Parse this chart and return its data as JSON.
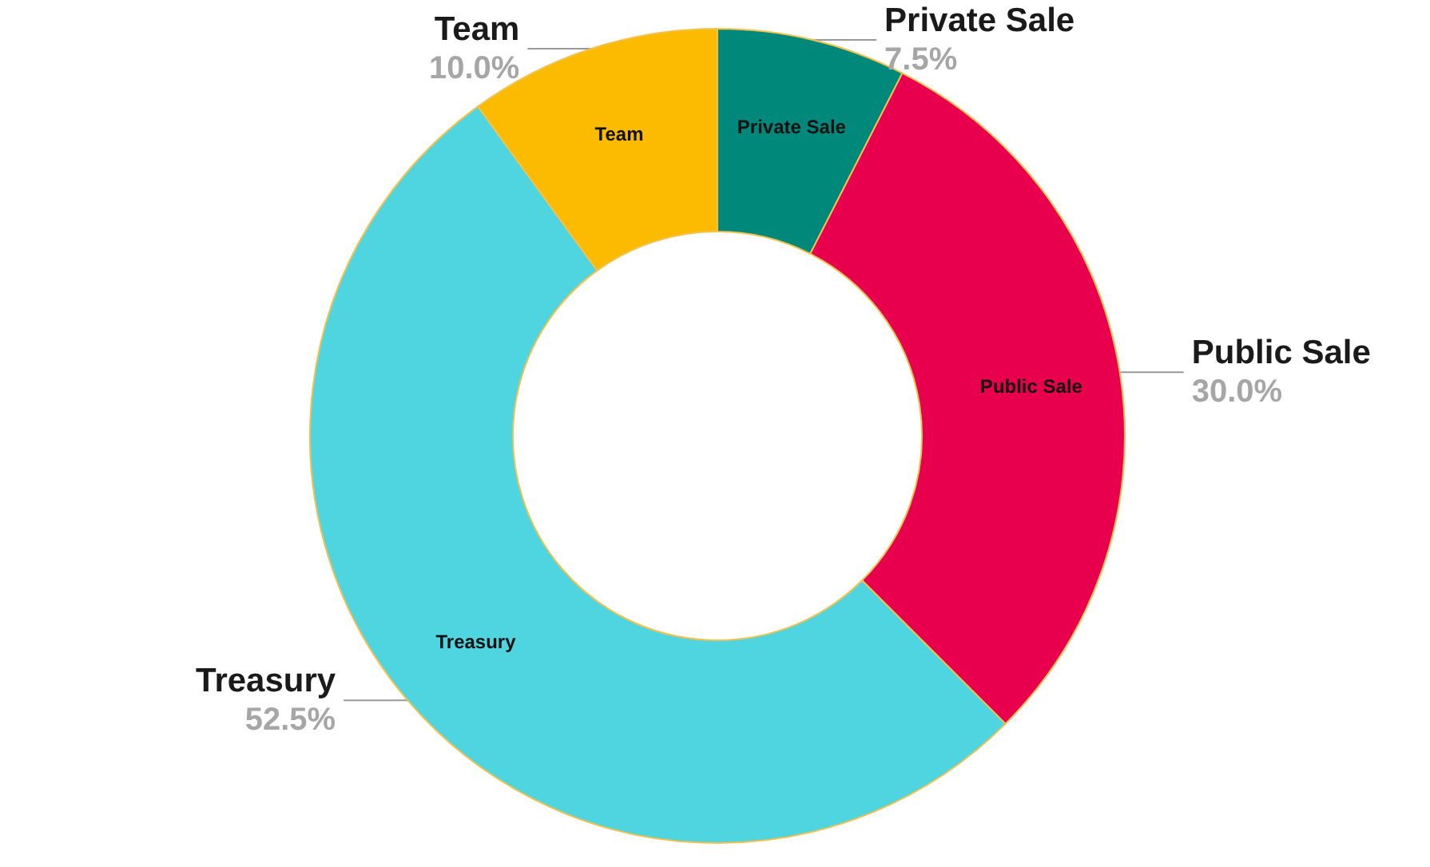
{
  "chart_data": {
    "type": "donut",
    "categories": [
      "Private Sale",
      "Public Sale",
      "Treasury",
      "Team"
    ],
    "values": [
      7.5,
      30,
      52.5,
      10
    ],
    "value_labels": [
      "7.5%",
      "30.0%",
      "52.5%",
      "10.0%"
    ],
    "colors": [
      "#00897b",
      "#e8004f",
      "#4fd5e0",
      "#fdbb00"
    ],
    "legend": false
  }
}
